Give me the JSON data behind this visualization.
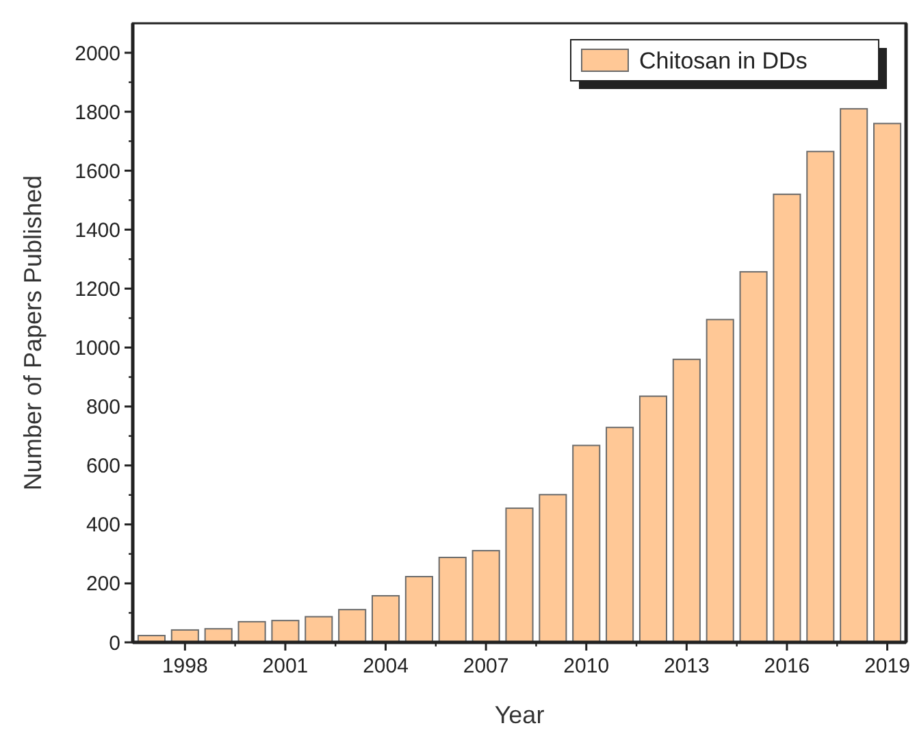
{
  "chart_data": {
    "type": "bar",
    "xlabel": "Year",
    "ylabel": "Number of Papers Published",
    "categories": [
      null,
      "1998",
      null,
      null,
      "2001",
      null,
      null,
      "2004",
      null,
      null,
      "2007",
      null,
      null,
      "2010",
      null,
      null,
      "2013",
      null,
      null,
      "2016",
      null,
      null,
      "2019"
    ],
    "series": [
      {
        "name": "Chitosan in DDs",
        "color": "#ffc896",
        "values": [
          23,
          42,
          46,
          70,
          74,
          87,
          111,
          158,
          223,
          288,
          311,
          455,
          501,
          668,
          729,
          835,
          960,
          1095,
          1257,
          1520,
          1665,
          1810,
          1760
        ]
      }
    ],
    "ylim": [
      0,
      2100
    ],
    "yticks": [
      0,
      200,
      400,
      600,
      800,
      1000,
      1200,
      1400,
      1600,
      1800,
      2000
    ],
    "legend": "top right"
  }
}
